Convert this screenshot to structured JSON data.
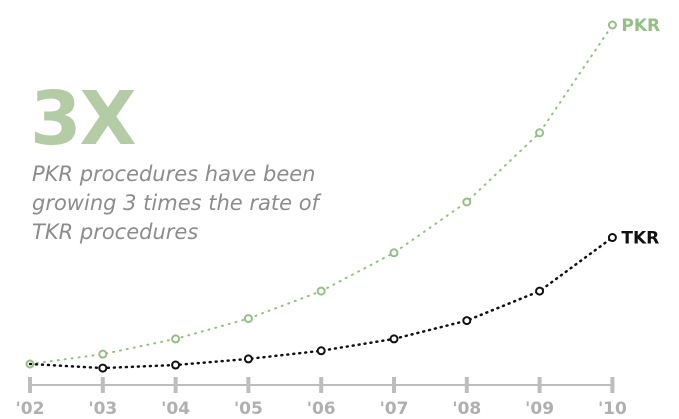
{
  "headline": "3X",
  "caption_lines": [
    "PKR procedures have been",
    "growing 3 times the rate of",
    "TKR procedures"
  ],
  "colors": {
    "pkr": "#94bf85",
    "tkr": "#111111",
    "headline": "#b3cca5",
    "caption": "#8c8c8c",
    "axis": "#bdbdbd",
    "tick_label": "#b0b0b0"
  },
  "chart_data": {
    "type": "line",
    "title": "",
    "xlabel": "",
    "ylabel": "",
    "categories": [
      "'02",
      "'03",
      "'04",
      "'05",
      "'06",
      "'07",
      "'08",
      "'09",
      "'10"
    ],
    "ylim": [
      0,
      100
    ],
    "grid": false,
    "y_axis_visible": false,
    "line_style": "dotted",
    "marker": "hollow-circle",
    "legend": "direct labels at line ends",
    "series": [
      {
        "name": "PKR",
        "color": "#94bf85",
        "values": [
          0,
          2.9,
          7.4,
          13.4,
          21.5,
          32.8,
          47.8,
          68.2,
          100
        ]
      },
      {
        "name": "TKR",
        "color": "#111111",
        "values": [
          0,
          -1.2,
          -0.3,
          1.5,
          3.9,
          7.4,
          12.8,
          21.5,
          37.3
        ]
      }
    ]
  }
}
